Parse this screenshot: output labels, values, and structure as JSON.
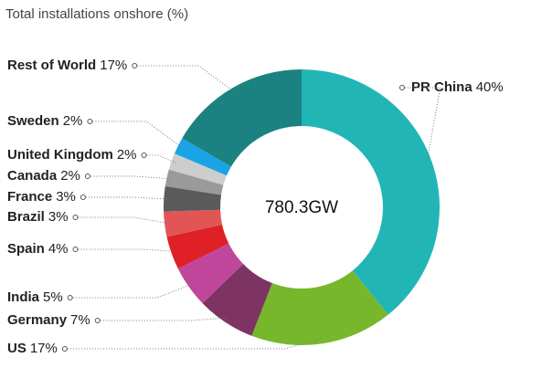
{
  "chart_data": {
    "type": "donut",
    "title": "Total installations onshore (%)",
    "center_label": "780.3GW",
    "categories": [
      "PR China",
      "US",
      "Germany",
      "India",
      "Spain",
      "Brazil",
      "France",
      "Canada",
      "United Kingdom",
      "Sweden",
      "Rest of World"
    ],
    "values": [
      40,
      17,
      7,
      5,
      4,
      3,
      3,
      2,
      2,
      2,
      17
    ],
    "value_labels": [
      "40%",
      "17%",
      "7%",
      "5%",
      "4%",
      "3%",
      "3%",
      "2%",
      "2%",
      "2%",
      "17%"
    ],
    "colors": [
      "#22b5b6",
      "#77b72c",
      "#7d3462",
      "#c0469c",
      "#e02027",
      "#e25555",
      "#5a5a5a",
      "#9a9a9a",
      "#cdcdcd",
      "#1aa4e6",
      "#1b8281"
    ]
  }
}
